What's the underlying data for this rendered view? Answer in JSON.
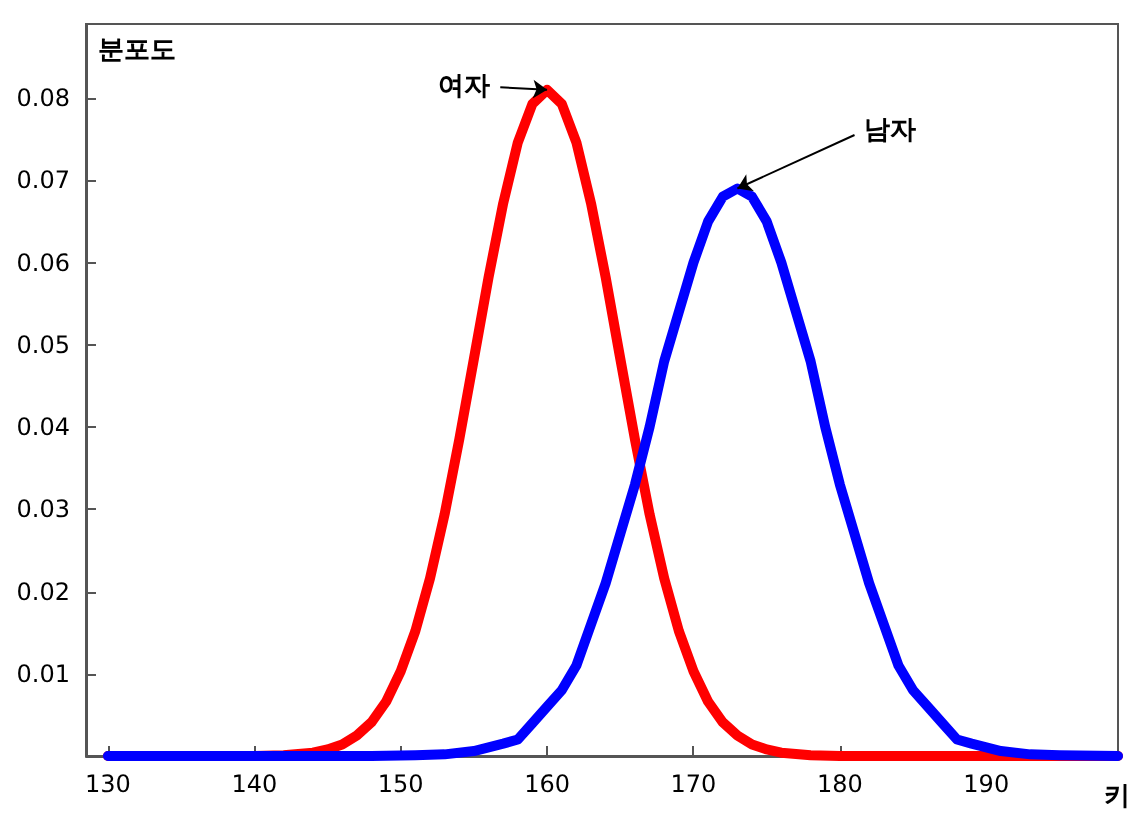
{
  "chart_data": {
    "type": "line",
    "xlabel": "키",
    "ylabel": "분포도",
    "xlim": [
      128.5,
      199
    ],
    "ylim": [
      0,
      0.089
    ],
    "xticks": [
      130,
      140,
      150,
      160,
      170,
      180,
      190
    ],
    "yticks": [
      {
        "value": 0,
        "label": null
      },
      0.01,
      0.02,
      0.03,
      0.04,
      0.05,
      0.06,
      0.07,
      0.08
    ],
    "grid": false,
    "marker": "none",
    "line_style": "solid",
    "annotations": [
      {
        "text": "여자",
        "x": 160,
        "y": 0.081
      },
      {
        "text": "남자",
        "x": 173,
        "y": 0.069
      }
    ],
    "series": [
      {
        "color": "#ff0000",
        "x": [
          130,
          135,
          140,
          142,
          144,
          145,
          146,
          147,
          148,
          149,
          150,
          151,
          152,
          153,
          154,
          155,
          156,
          157,
          158,
          159,
          160,
          161,
          162,
          163,
          164,
          165,
          166,
          167,
          168,
          169,
          170,
          171,
          172,
          173,
          174,
          175,
          176,
          178,
          180,
          185,
          190,
          199
        ],
        "values": [
          0,
          0,
          0,
          0.0001,
          0.0004,
          0.0008,
          0.0014,
          0.0025,
          0.0041,
          0.0066,
          0.0103,
          0.0152,
          0.0216,
          0.0294,
          0.0385,
          0.0483,
          0.0582,
          0.0672,
          0.0746,
          0.0793,
          0.081,
          0.0793,
          0.0746,
          0.0672,
          0.0582,
          0.0483,
          0.0385,
          0.0294,
          0.0216,
          0.0152,
          0.0103,
          0.0066,
          0.0041,
          0.0025,
          0.0014,
          0.0008,
          0.0004,
          0.0001,
          0,
          0,
          0,
          0
        ]
      },
      {
        "color": "#0000ff",
        "x": [
          130,
          148,
          151,
          153,
          155,
          157,
          158,
          159,
          160,
          161,
          162,
          163,
          164,
          165,
          166,
          167,
          168,
          169,
          170,
          171,
          172,
          173,
          174,
          175,
          176,
          177,
          178,
          179,
          180,
          181,
          182,
          183,
          184,
          185,
          186,
          187,
          188,
          189,
          191,
          193,
          195,
          199
        ],
        "values": [
          0,
          0,
          0.0001,
          0.0002,
          0.0006,
          0.0015,
          0.002,
          0.004,
          0.006,
          0.008,
          0.011,
          0.016,
          0.021,
          0.027,
          0.033,
          0.04,
          0.048,
          0.054,
          0.06,
          0.065,
          0.068,
          0.069,
          0.068,
          0.065,
          0.06,
          0.054,
          0.048,
          0.04,
          0.033,
          0.027,
          0.021,
          0.016,
          0.011,
          0.008,
          0.006,
          0.004,
          0.002,
          0.0015,
          0.0006,
          0.0002,
          0.0001,
          0
        ]
      }
    ]
  }
}
